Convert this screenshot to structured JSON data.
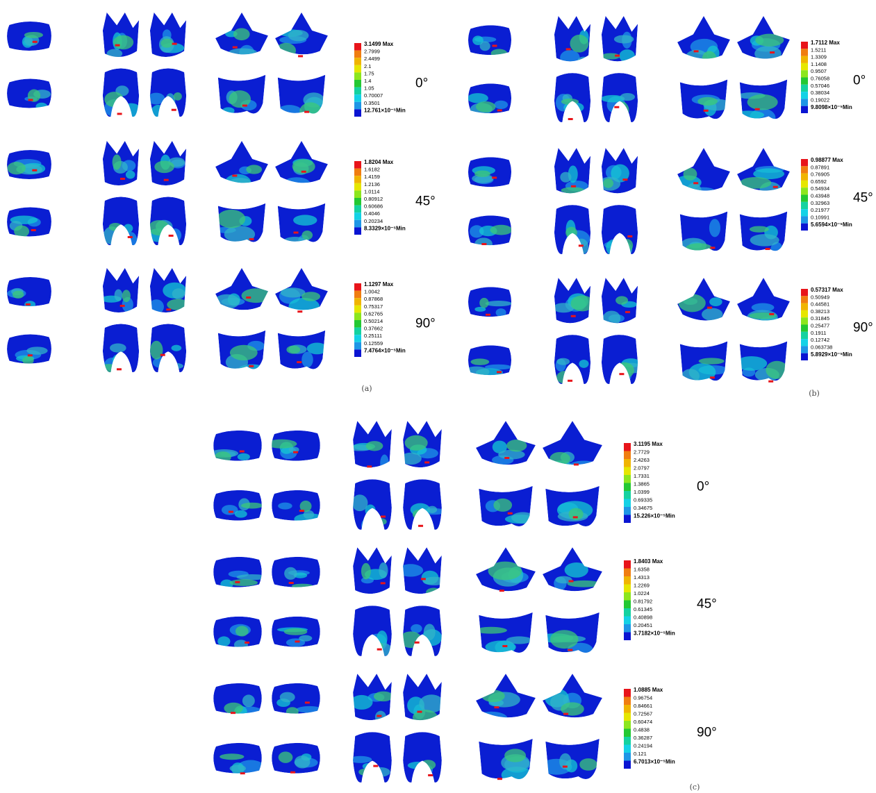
{
  "panels": [
    {
      "label": "(a)",
      "rows": [
        {
          "angle": "0°",
          "legend": [
            "3.1499 Max",
            "2.7999",
            "2.4499",
            "2.1",
            "1.75",
            "1.4",
            "1.05",
            "0.70007",
            "0.3501",
            "12.761×10⁻⁵Min"
          ]
        },
        {
          "angle": "45°",
          "legend": [
            "1.8204 Max",
            "1.6182",
            "1.4159",
            "1.2136",
            "1.0114",
            "0.80912",
            "0.60686",
            "0.4046",
            "0.20234",
            "8.3329×10⁻⁵Min"
          ]
        },
        {
          "angle": "90°",
          "legend": [
            "1.1297 Max",
            "1.0042",
            "0.87868",
            "0.75317",
            "0.62765",
            "0.50214",
            "0.37662",
            "0.25111",
            "0.12559",
            "7.4764×10⁻⁵Min"
          ]
        }
      ]
    },
    {
      "label": "(b)",
      "rows": [
        {
          "angle": "0°",
          "legend": [
            "1.7112 Max",
            "1.5211",
            "1.3309",
            "1.1408",
            "0.9507",
            "0.76058",
            "0.57046",
            "0.38034",
            "0.19022",
            "9.8098×10⁻⁵Min"
          ]
        },
        {
          "angle": "45°",
          "legend": [
            "0.98877 Max",
            "0.87891",
            "0.76905",
            "0.6592",
            "0.54934",
            "0.43948",
            "0.32963",
            "0.21977",
            "0.10991",
            "5.6594×10⁻⁵Min"
          ]
        },
        {
          "angle": "90°",
          "legend": [
            "0.57317 Max",
            "0.50949",
            "0.44581",
            "0.38213",
            "0.31845",
            "0.25477",
            "0.1911",
            "0.12742",
            "0.063738",
            "5.8929×10⁻⁵Min"
          ]
        }
      ]
    },
    {
      "label": "(c)",
      "rows": [
        {
          "angle": "0°",
          "legend": [
            "3.1195 Max",
            "2.7729",
            "2.4263",
            "2.0797",
            "1.7331",
            "1.3865",
            "1.0399",
            "0.69335",
            "0.34675",
            "15.226×10⁻⁵Min"
          ]
        },
        {
          "angle": "45°",
          "legend": [
            "1.8403 Max",
            "1.6358",
            "1.4313",
            "1.2269",
            "1.0224",
            "0.81792",
            "0.61345",
            "0.40898",
            "0.20451",
            "3.7182×10⁻⁵Min"
          ]
        },
        {
          "angle": "90°",
          "legend": [
            "1.0885 Max",
            "0.96754",
            "0.84661",
            "0.72567",
            "0.60474",
            "0.4838",
            "0.36287",
            "0.24194",
            "0.121",
            "6.7013×10⁻⁵Min"
          ]
        }
      ]
    }
  ]
}
